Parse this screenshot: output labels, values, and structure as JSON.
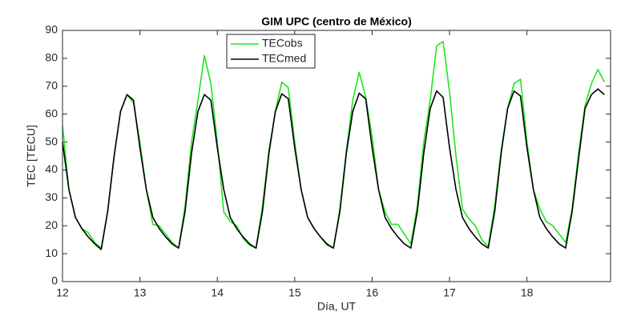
{
  "chart_data": {
    "type": "line",
    "title": "GIM UPC (centro de México)",
    "x_label": "Día, UT",
    "y_label": "TEC [TECU]",
    "x": [
      12,
      12.083,
      12.167,
      12.25,
      12.333,
      12.417,
      12.5,
      12.583,
      12.667,
      12.75,
      12.833,
      12.917,
      13,
      13.083,
      13.167,
      13.25,
      13.333,
      13.417,
      13.5,
      13.583,
      13.667,
      13.75,
      13.833,
      13.917,
      14,
      14.083,
      14.167,
      14.25,
      14.333,
      14.417,
      14.5,
      14.583,
      14.667,
      14.75,
      14.833,
      14.917,
      15,
      15.083,
      15.167,
      15.25,
      15.333,
      15.417,
      15.5,
      15.583,
      15.667,
      15.75,
      15.833,
      15.917,
      16,
      16.083,
      16.167,
      16.25,
      16.333,
      16.417,
      16.5,
      16.583,
      16.667,
      16.75,
      16.833,
      16.917,
      17,
      17.083,
      17.167,
      17.25,
      17.333,
      17.417,
      17.5,
      17.583,
      17.667,
      17.75,
      17.833,
      17.917,
      18,
      18.083,
      18.167,
      18.25,
      18.333,
      18.417,
      18.5,
      18.583,
      18.667,
      18.75,
      18.833,
      18.917,
      19
    ],
    "series": [
      {
        "name": "TECobs",
        "color": "#1ee61e",
        "values": [
          56,
          33,
          23,
          19,
          17.5,
          14,
          12,
          25,
          45,
          61,
          67,
          64,
          50,
          33,
          20.5,
          20,
          17,
          14,
          12,
          27,
          50,
          65,
          81,
          71,
          50,
          25,
          21.5,
          20,
          15.5,
          13,
          12,
          27,
          47,
          61,
          71.5,
          69.5,
          50,
          33,
          23,
          19,
          16,
          13,
          12,
          26,
          47,
          65,
          75,
          66,
          52,
          33,
          25,
          20.5,
          20.5,
          17,
          13.5,
          27,
          50,
          65,
          84.5,
          86,
          68,
          45,
          26,
          22.5,
          20,
          15,
          12.5,
          27,
          47,
          62,
          71,
          72.5,
          50,
          33,
          26,
          21.5,
          20,
          17,
          14,
          26,
          46,
          63,
          71,
          76,
          71.5
        ]
      },
      {
        "name": "TECmed",
        "color": "#000000",
        "values": [
          50,
          33,
          23,
          19,
          16,
          13.5,
          11.5,
          25,
          45,
          61,
          67,
          65,
          48,
          33,
          23,
          19,
          16,
          13.5,
          12,
          25,
          46,
          61,
          67,
          65,
          48,
          33,
          23,
          19,
          16,
          13.5,
          12,
          25,
          46,
          61,
          67.3,
          65.5,
          48,
          33,
          23,
          19,
          16,
          13.5,
          12,
          25,
          46,
          61,
          67.5,
          65.5,
          48,
          33,
          23,
          19,
          16,
          13.5,
          12,
          25,
          46,
          62,
          68.3,
          66,
          48,
          33,
          23,
          19,
          16,
          13.5,
          12,
          25,
          46,
          62,
          68.3,
          66.5,
          48,
          33,
          23,
          19,
          16,
          13.5,
          12,
          25,
          44,
          62,
          67,
          69,
          67
        ]
      }
    ],
    "xlim": [
      12,
      19.08
    ],
    "ylim": [
      0,
      90
    ],
    "xticks": [
      12,
      13,
      14,
      15,
      16,
      17,
      18
    ],
    "yticks": [
      0,
      10,
      20,
      30,
      40,
      50,
      60,
      70,
      80,
      90
    ],
    "grid": false,
    "legend": "upper center"
  }
}
